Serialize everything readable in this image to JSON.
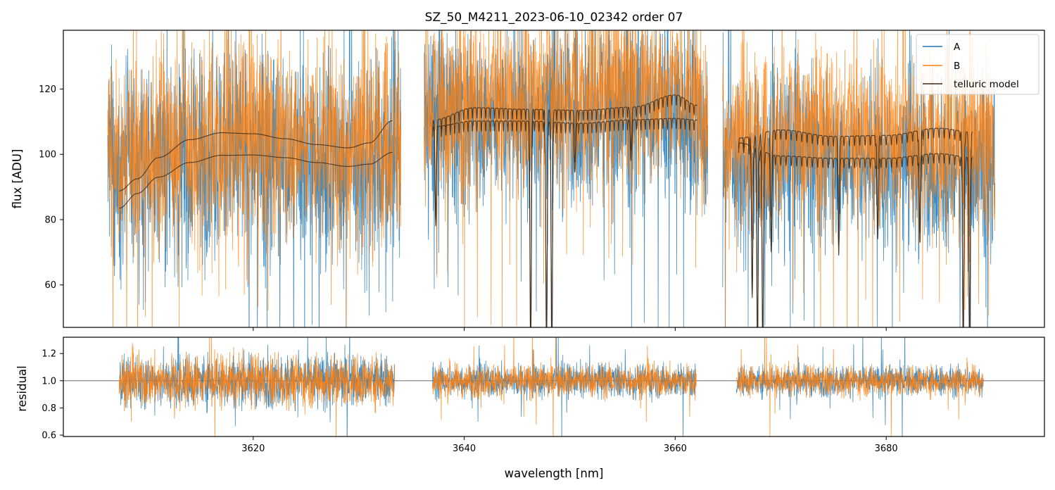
{
  "chart_data": [
    {
      "type": "line",
      "panel": "top",
      "title": "SZ_50_M4211_2023-06-10_02342  order 07",
      "xlabel": "",
      "ylabel": "flux [ADU]",
      "xlim": [
        3602,
        3695
      ],
      "ylim": [
        47,
        138
      ],
      "yticks": [
        60,
        80,
        100,
        120
      ],
      "ytick_labels": [
        "60",
        "80",
        "100",
        "120"
      ],
      "xticks": [
        3620,
        3640,
        3660,
        3680
      ],
      "xtick_labels": [],
      "grid": false,
      "legend_position": "top-right",
      "legend": [
        "A",
        "B",
        "telluric model"
      ],
      "segments": [
        {
          "x": [
            3606.2,
            3634.0
          ],
          "level": 98,
          "noise": 16
        },
        {
          "x": [
            3636.2,
            3663.1
          ],
          "level": 113,
          "noise": 14
        },
        {
          "x": [
            3664.5,
            3690.3
          ],
          "level": 102,
          "noise": 13
        }
      ],
      "series": [
        {
          "name": "A",
          "color": "#1f77b4",
          "description": "noisy observed flux trace",
          "envelope_samples": [
            {
              "x": 3607,
              "y": 95
            },
            {
              "x": 3612,
              "y": 97
            },
            {
              "x": 3618,
              "y": 100
            },
            {
              "x": 3624,
              "y": 99
            },
            {
              "x": 3630,
              "y": 98
            },
            {
              "x": 3638,
              "y": 110
            },
            {
              "x": 3645,
              "y": 112
            },
            {
              "x": 3652,
              "y": 113
            },
            {
              "x": 3660,
              "y": 114
            },
            {
              "x": 3666,
              "y": 97
            },
            {
              "x": 3672,
              "y": 99
            },
            {
              "x": 3680,
              "y": 98
            },
            {
              "x": 3689,
              "y": 96
            }
          ]
        },
        {
          "name": "B",
          "color": "#ff7f0e",
          "description": "noisy observed flux trace",
          "envelope_samples": [
            {
              "x": 3607,
              "y": 99
            },
            {
              "x": 3612,
              "y": 103
            },
            {
              "x": 3618,
              "y": 106
            },
            {
              "x": 3624,
              "y": 105
            },
            {
              "x": 3630,
              "y": 103
            },
            {
              "x": 3638,
              "y": 114
            },
            {
              "x": 3645,
              "y": 117
            },
            {
              "x": 3652,
              "y": 119
            },
            {
              "x": 3660,
              "y": 120
            },
            {
              "x": 3666,
              "y": 104
            },
            {
              "x": 3672,
              "y": 107
            },
            {
              "x": 3680,
              "y": 106
            },
            {
              "x": 3689,
              "y": 104
            }
          ]
        },
        {
          "name": "telluric model",
          "color": "#3a2a1a",
          "curves": [
            {
              "label": "model A segment 1",
              "points": [
                [
                  3607.3,
                  83.5
                ],
                [
                  3609,
                  88
                ],
                [
                  3611,
                  93
                ],
                [
                  3614,
                  97.5
                ],
                [
                  3617,
                  99.7
                ],
                [
                  3620,
                  99.8
                ],
                [
                  3623,
                  99
                ],
                [
                  3626,
                  97.5
                ],
                [
                  3629,
                  96.3
                ],
                [
                  3631,
                  97
                ],
                [
                  3633.2,
                  100.6
                ]
              ]
            },
            {
              "label": "model B segment 1",
              "points": [
                [
                  3607.3,
                  88.8
                ],
                [
                  3609,
                  92.5
                ],
                [
                  3611,
                  99
                ],
                [
                  3614,
                  104.5
                ],
                [
                  3617,
                  106.6
                ],
                [
                  3620,
                  106.3
                ],
                [
                  3623,
                  104.8
                ],
                [
                  3626,
                  103
                ],
                [
                  3629,
                  102
                ],
                [
                  3631,
                  103.5
                ],
                [
                  3633.2,
                  110.3
                ]
              ]
            },
            {
              "label": "model A segment 2",
              "baseline": [
                [
                  3637.0,
                  108.5
                ],
                [
                  3641,
                  110.2
                ],
                [
                  3646,
                  110.2
                ],
                [
                  3651,
                  109.5
                ],
                [
                  3656,
                  110.6
                ],
                [
                  3660,
                  111.0
                ],
                [
                  3662.1,
                  110.5
                ]
              ],
              "lines_every": 0.42,
              "line_depth": 3.2,
              "deep_lines": [
                [
                  3637.3,
                  78
                ],
                [
                  3646.3,
                  40
                ],
                [
                  3647.8,
                  40
                ],
                [
                  3648.3,
                  40
                ],
                [
                  3650.5,
                  95
                ],
                [
                  3655.8,
                  98
                ]
              ]
            },
            {
              "label": "model B segment 2",
              "baseline": [
                [
                  3637.0,
                  110.5
                ],
                [
                  3641,
                  114.3
                ],
                [
                  3646,
                  113.8
                ],
                [
                  3651,
                  113.5
                ],
                [
                  3656,
                  114.5
                ],
                [
                  3660,
                  118.2
                ],
                [
                  3662.1,
                  115.0
                ]
              ],
              "lines_every": 0.42,
              "line_depth": 3.2,
              "deep_lines": [
                [
                  3637.3,
                  80
                ],
                [
                  3646.3,
                  40
                ],
                [
                  3647.8,
                  40
                ],
                [
                  3648.3,
                  40
                ],
                [
                  3650.5,
                  98
                ],
                [
                  3655.8,
                  101
                ]
              ]
            },
            {
              "label": "model A segment 3",
              "baseline": [
                [
                  3666.0,
                  103.5
                ],
                [
                  3670,
                  99.5
                ],
                [
                  3675,
                  98.8
                ],
                [
                  3680,
                  98.8
                ],
                [
                  3685,
                  100.2
                ],
                [
                  3688.2,
                  99.0
                ]
              ],
              "lines_every": 0.5,
              "line_depth": 3.0,
              "deep_lines": [
                [
                  3667.3,
                  56
                ],
                [
                  3667.8,
                  40
                ],
                [
                  3668.3,
                  40
                ],
                [
                  3669.1,
                  70
                ],
                [
                  3675.5,
                  72
                ],
                [
                  3679.2,
                  74
                ],
                [
                  3683.2,
                  73
                ],
                [
                  3687.3,
                  40
                ],
                [
                  3687.9,
                  40
                ]
              ]
            },
            {
              "label": "model B segment 3",
              "baseline": [
                [
                  3666.0,
                  105.0
                ],
                [
                  3670,
                  107.5
                ],
                [
                  3675,
                  105.5
                ],
                [
                  3680,
                  105.8
                ],
                [
                  3685,
                  108.0
                ],
                [
                  3688.2,
                  106.8
                ]
              ],
              "lines_every": 0.5,
              "line_depth": 3.0,
              "deep_lines": [
                [
                  3667.3,
                  58
                ],
                [
                  3667.8,
                  40
                ],
                [
                  3668.3,
                  40
                ],
                [
                  3669.1,
                  72
                ],
                [
                  3675.5,
                  75
                ],
                [
                  3679.2,
                  77
                ],
                [
                  3683.2,
                  76
                ],
                [
                  3687.3,
                  40
                ],
                [
                  3687.9,
                  40
                ]
              ]
            }
          ]
        }
      ]
    },
    {
      "type": "line",
      "panel": "bottom",
      "title": "",
      "xlabel": "wavelength [nm]",
      "ylabel": "residual",
      "xlim": [
        3602,
        3695
      ],
      "ylim": [
        0.59,
        1.32
      ],
      "yticks": [
        0.6,
        0.8,
        1.0,
        1.2
      ],
      "ytick_labels": [
        "0.6",
        "0.8",
        "1.0",
        "1.2"
      ],
      "xticks": [
        3620,
        3640,
        3660,
        3680
      ],
      "xtick_labels": [
        "3620",
        "3640",
        "3660",
        "3680"
      ],
      "reference_line": 1.0,
      "grid": false,
      "segments": [
        {
          "x": [
            3607.3,
            3633.4
          ],
          "level": 1.0,
          "noise": 0.17
        },
        {
          "x": [
            3637.0,
            3662.0
          ],
          "level": 1.0,
          "noise": 0.11
        },
        {
          "x": [
            3665.8,
            3689.2
          ],
          "level": 1.0,
          "noise": 0.1
        }
      ],
      "series": [
        {
          "name": "A",
          "color": "#1f77b4"
        },
        {
          "name": "B",
          "color": "#ff7f0e"
        }
      ]
    }
  ]
}
